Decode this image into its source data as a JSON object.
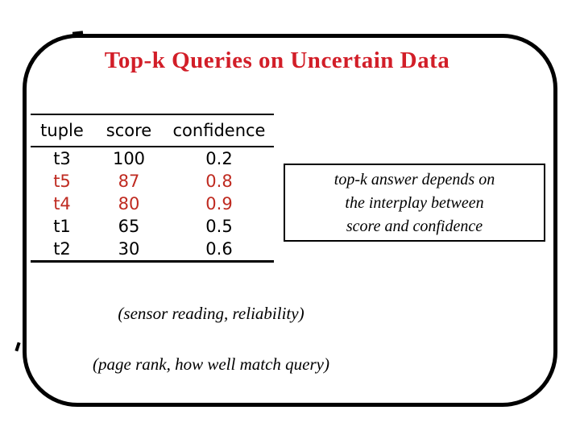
{
  "slide": {
    "title": "Top-k Queries on Uncertain Data",
    "colors": {
      "title_red": "#d21e28",
      "highlight_red": "#bf2a20",
      "border_black": "#000000",
      "background": "#ffffff"
    }
  },
  "table": {
    "columns": [
      "tuple",
      "score",
      "confidence"
    ],
    "rows": [
      {
        "tuple": "t3",
        "score": "100",
        "confidence": "0.2",
        "highlighted": false
      },
      {
        "tuple": "t5",
        "score": "87",
        "confidence": "0.8",
        "highlighted": true
      },
      {
        "tuple": "t4",
        "score": "80",
        "confidence": "0.9",
        "highlighted": true
      },
      {
        "tuple": "t1",
        "score": "65",
        "confidence": "0.5",
        "highlighted": false
      },
      {
        "tuple": "t2",
        "score": "30",
        "confidence": "0.6",
        "highlighted": false
      }
    ]
  },
  "callout": {
    "lines": [
      "top-k answer depends on",
      "the interplay between",
      "score and confidence"
    ]
  },
  "captions": {
    "sensor": "(sensor reading, reliability)",
    "page_rank": "(page rank, how well match query)"
  }
}
